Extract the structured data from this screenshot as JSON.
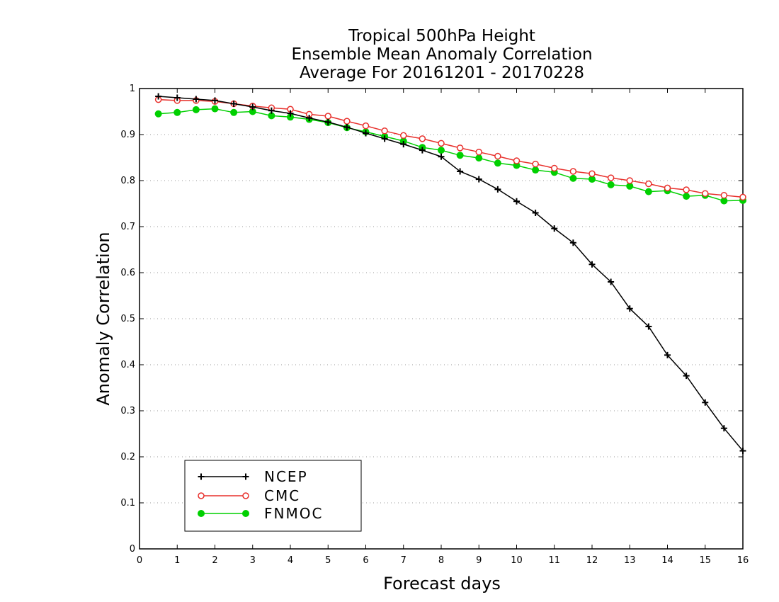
{
  "chart_data": {
    "type": "line",
    "title": [
      "Tropical 500hPa Height",
      "Ensemble Mean Anomaly Correlation",
      "Average For 20161201 - 20170228"
    ],
    "xlabel": "Forecast days",
    "ylabel": "Anomaly Correlation",
    "xlim": [
      0,
      16
    ],
    "ylim": [
      0,
      1
    ],
    "xticks": [
      "0",
      "1",
      "2",
      "3",
      "4",
      "5",
      "6",
      "7",
      "8",
      "9",
      "10",
      "11",
      "12",
      "13",
      "14",
      "15",
      "16"
    ],
    "yticks": [
      "0",
      "0.1",
      "0.2",
      "0.3",
      "0.4",
      "0.5",
      "0.6",
      "0.7",
      "0.8",
      "0.9",
      "1"
    ],
    "grid": "horizontal dotted",
    "legend_position": "bottom-left",
    "x": [
      0.5,
      1,
      1.5,
      2,
      2.5,
      3,
      3.5,
      4,
      4.5,
      5,
      5.5,
      6,
      6.5,
      7,
      7.5,
      8,
      8.5,
      9,
      9.5,
      10,
      10.5,
      11,
      11.5,
      12,
      12.5,
      13,
      13.5,
      14,
      14.5,
      15,
      15.5,
      16
    ],
    "series": [
      {
        "name": "NCEP",
        "color": "#000000",
        "marker": "plus",
        "values": [
          0.983,
          0.98,
          0.977,
          0.974,
          0.967,
          0.96,
          0.952,
          0.946,
          0.936,
          0.927,
          0.916,
          0.903,
          0.891,
          0.879,
          0.866,
          0.852,
          0.82,
          0.803,
          0.781,
          0.755,
          0.73,
          0.696,
          0.665,
          0.618,
          0.58,
          0.522,
          0.483,
          0.421,
          0.376,
          0.318,
          0.262,
          0.213
        ]
      },
      {
        "name": "CMC",
        "color": "#e8302c",
        "marker": "open-circle",
        "values": [
          0.976,
          0.974,
          0.974,
          0.972,
          0.967,
          0.962,
          0.958,
          0.955,
          0.944,
          0.94,
          0.929,
          0.919,
          0.908,
          0.898,
          0.891,
          0.881,
          0.871,
          0.862,
          0.853,
          0.843,
          0.836,
          0.827,
          0.82,
          0.815,
          0.806,
          0.8,
          0.793,
          0.784,
          0.78,
          0.772,
          0.768,
          0.764
        ]
      },
      {
        "name": "FNMOC",
        "color": "#00d000",
        "marker": "filled-circle",
        "values": [
          0.945,
          0.948,
          0.954,
          0.956,
          0.948,
          0.95,
          0.941,
          0.938,
          0.933,
          0.926,
          0.915,
          0.906,
          0.896,
          0.886,
          0.872,
          0.866,
          0.855,
          0.849,
          0.838,
          0.833,
          0.823,
          0.818,
          0.805,
          0.803,
          0.791,
          0.788,
          0.776,
          0.778,
          0.766,
          0.768,
          0.756,
          0.757
        ]
      }
    ]
  }
}
